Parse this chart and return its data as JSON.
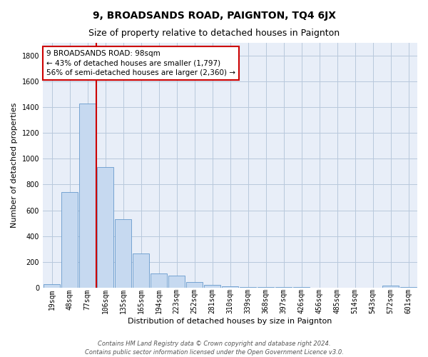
{
  "title": "9, BROADSANDS ROAD, PAIGNTON, TQ4 6JX",
  "subtitle": "Size of property relative to detached houses in Paignton",
  "xlabel": "Distribution of detached houses by size in Paignton",
  "ylabel": "Number of detached properties",
  "footnote1": "Contains HM Land Registry data © Crown copyright and database right 2024.",
  "footnote2": "Contains public sector information licensed under the Open Government Licence v3.0.",
  "bar_labels": [
    "19sqm",
    "48sqm",
    "77sqm",
    "106sqm",
    "135sqm",
    "165sqm",
    "194sqm",
    "223sqm",
    "252sqm",
    "281sqm",
    "310sqm",
    "339sqm",
    "368sqm",
    "397sqm",
    "426sqm",
    "456sqm",
    "485sqm",
    "514sqm",
    "543sqm",
    "572sqm",
    "601sqm"
  ],
  "bar_values": [
    25,
    740,
    1430,
    935,
    530,
    265,
    110,
    95,
    45,
    22,
    10,
    5,
    3,
    2,
    2,
    1,
    1,
    0,
    0,
    14,
    5
  ],
  "bar_color": "#c6d9f0",
  "bar_edgecolor": "#6699cc",
  "annotation_text": "9 BROADSANDS ROAD: 98sqm\n← 43% of detached houses are smaller (1,797)\n56% of semi-detached houses are larger (2,360) →",
  "annotation_box_color": "white",
  "annotation_box_edgecolor": "#cc0000",
  "vline_color": "#cc0000",
  "vline_x_index": 2,
  "ylim": [
    0,
    1900
  ],
  "yticks": [
    0,
    200,
    400,
    600,
    800,
    1000,
    1200,
    1400,
    1600,
    1800
  ],
  "background_color": "#e8eef8",
  "grid_color": "#b8c8dc",
  "plot_bg_color": "#e8eef8",
  "title_fontsize": 10,
  "subtitle_fontsize": 9,
  "ylabel_fontsize": 8,
  "xlabel_fontsize": 8,
  "tick_fontsize": 7,
  "annot_fontsize": 7.5,
  "footnote_fontsize": 6
}
